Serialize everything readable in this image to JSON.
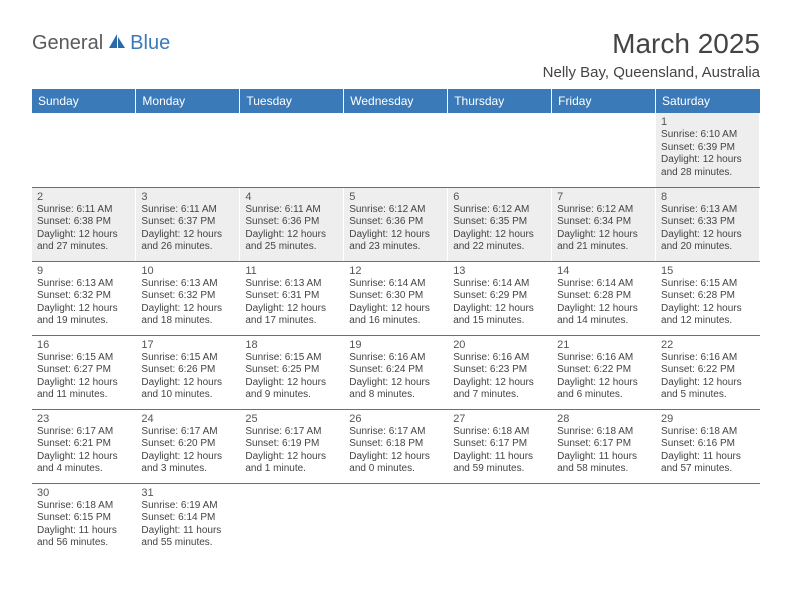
{
  "logo": {
    "text_dark": "General",
    "text_blue": "Blue",
    "icon_color": "#2b6aa8"
  },
  "title": "March 2025",
  "location": "Nelly Bay, Queensland, Australia",
  "colors": {
    "header_bg": "#3a7ab8",
    "header_text": "#ffffff",
    "shaded_bg": "#eeeeee",
    "border": "#3a7ab8"
  },
  "day_headers": [
    "Sunday",
    "Monday",
    "Tuesday",
    "Wednesday",
    "Thursday",
    "Friday",
    "Saturday"
  ],
  "weeks": [
    [
      {
        "blank": true
      },
      {
        "blank": true
      },
      {
        "blank": true
      },
      {
        "blank": true
      },
      {
        "blank": true
      },
      {
        "blank": true
      },
      {
        "day": "1",
        "shaded": true,
        "sunrise": "Sunrise: 6:10 AM",
        "sunset": "Sunset: 6:39 PM",
        "daylight": "Daylight: 12 hours and 28 minutes."
      }
    ],
    [
      {
        "day": "2",
        "shaded": true,
        "sunrise": "Sunrise: 6:11 AM",
        "sunset": "Sunset: 6:38 PM",
        "daylight": "Daylight: 12 hours and 27 minutes."
      },
      {
        "day": "3",
        "shaded": true,
        "sunrise": "Sunrise: 6:11 AM",
        "sunset": "Sunset: 6:37 PM",
        "daylight": "Daylight: 12 hours and 26 minutes."
      },
      {
        "day": "4",
        "shaded": true,
        "sunrise": "Sunrise: 6:11 AM",
        "sunset": "Sunset: 6:36 PM",
        "daylight": "Daylight: 12 hours and 25 minutes."
      },
      {
        "day": "5",
        "shaded": true,
        "sunrise": "Sunrise: 6:12 AM",
        "sunset": "Sunset: 6:36 PM",
        "daylight": "Daylight: 12 hours and 23 minutes."
      },
      {
        "day": "6",
        "shaded": true,
        "sunrise": "Sunrise: 6:12 AM",
        "sunset": "Sunset: 6:35 PM",
        "daylight": "Daylight: 12 hours and 22 minutes."
      },
      {
        "day": "7",
        "shaded": true,
        "sunrise": "Sunrise: 6:12 AM",
        "sunset": "Sunset: 6:34 PM",
        "daylight": "Daylight: 12 hours and 21 minutes."
      },
      {
        "day": "8",
        "shaded": true,
        "sunrise": "Sunrise: 6:13 AM",
        "sunset": "Sunset: 6:33 PM",
        "daylight": "Daylight: 12 hours and 20 minutes."
      }
    ],
    [
      {
        "day": "9",
        "sunrise": "Sunrise: 6:13 AM",
        "sunset": "Sunset: 6:32 PM",
        "daylight": "Daylight: 12 hours and 19 minutes."
      },
      {
        "day": "10",
        "sunrise": "Sunrise: 6:13 AM",
        "sunset": "Sunset: 6:32 PM",
        "daylight": "Daylight: 12 hours and 18 minutes."
      },
      {
        "day": "11",
        "sunrise": "Sunrise: 6:13 AM",
        "sunset": "Sunset: 6:31 PM",
        "daylight": "Daylight: 12 hours and 17 minutes."
      },
      {
        "day": "12",
        "sunrise": "Sunrise: 6:14 AM",
        "sunset": "Sunset: 6:30 PM",
        "daylight": "Daylight: 12 hours and 16 minutes."
      },
      {
        "day": "13",
        "sunrise": "Sunrise: 6:14 AM",
        "sunset": "Sunset: 6:29 PM",
        "daylight": "Daylight: 12 hours and 15 minutes."
      },
      {
        "day": "14",
        "sunrise": "Sunrise: 6:14 AM",
        "sunset": "Sunset: 6:28 PM",
        "daylight": "Daylight: 12 hours and 14 minutes."
      },
      {
        "day": "15",
        "sunrise": "Sunrise: 6:15 AM",
        "sunset": "Sunset: 6:28 PM",
        "daylight": "Daylight: 12 hours and 12 minutes."
      }
    ],
    [
      {
        "day": "16",
        "sunrise": "Sunrise: 6:15 AM",
        "sunset": "Sunset: 6:27 PM",
        "daylight": "Daylight: 12 hours and 11 minutes."
      },
      {
        "day": "17",
        "sunrise": "Sunrise: 6:15 AM",
        "sunset": "Sunset: 6:26 PM",
        "daylight": "Daylight: 12 hours and 10 minutes."
      },
      {
        "day": "18",
        "sunrise": "Sunrise: 6:15 AM",
        "sunset": "Sunset: 6:25 PM",
        "daylight": "Daylight: 12 hours and 9 minutes."
      },
      {
        "day": "19",
        "sunrise": "Sunrise: 6:16 AM",
        "sunset": "Sunset: 6:24 PM",
        "daylight": "Daylight: 12 hours and 8 minutes."
      },
      {
        "day": "20",
        "sunrise": "Sunrise: 6:16 AM",
        "sunset": "Sunset: 6:23 PM",
        "daylight": "Daylight: 12 hours and 7 minutes."
      },
      {
        "day": "21",
        "sunrise": "Sunrise: 6:16 AM",
        "sunset": "Sunset: 6:22 PM",
        "daylight": "Daylight: 12 hours and 6 minutes."
      },
      {
        "day": "22",
        "sunrise": "Sunrise: 6:16 AM",
        "sunset": "Sunset: 6:22 PM",
        "daylight": "Daylight: 12 hours and 5 minutes."
      }
    ],
    [
      {
        "day": "23",
        "sunrise": "Sunrise: 6:17 AM",
        "sunset": "Sunset: 6:21 PM",
        "daylight": "Daylight: 12 hours and 4 minutes."
      },
      {
        "day": "24",
        "sunrise": "Sunrise: 6:17 AM",
        "sunset": "Sunset: 6:20 PM",
        "daylight": "Daylight: 12 hours and 3 minutes."
      },
      {
        "day": "25",
        "sunrise": "Sunrise: 6:17 AM",
        "sunset": "Sunset: 6:19 PM",
        "daylight": "Daylight: 12 hours and 1 minute."
      },
      {
        "day": "26",
        "sunrise": "Sunrise: 6:17 AM",
        "sunset": "Sunset: 6:18 PM",
        "daylight": "Daylight: 12 hours and 0 minutes."
      },
      {
        "day": "27",
        "sunrise": "Sunrise: 6:18 AM",
        "sunset": "Sunset: 6:17 PM",
        "daylight": "Daylight: 11 hours and 59 minutes."
      },
      {
        "day": "28",
        "sunrise": "Sunrise: 6:18 AM",
        "sunset": "Sunset: 6:17 PM",
        "daylight": "Daylight: 11 hours and 58 minutes."
      },
      {
        "day": "29",
        "sunrise": "Sunrise: 6:18 AM",
        "sunset": "Sunset: 6:16 PM",
        "daylight": "Daylight: 11 hours and 57 minutes."
      }
    ],
    [
      {
        "day": "30",
        "sunrise": "Sunrise: 6:18 AM",
        "sunset": "Sunset: 6:15 PM",
        "daylight": "Daylight: 11 hours and 56 minutes."
      },
      {
        "day": "31",
        "sunrise": "Sunrise: 6:19 AM",
        "sunset": "Sunset: 6:14 PM",
        "daylight": "Daylight: 11 hours and 55 minutes."
      },
      {
        "blank": true,
        "noborder": true
      },
      {
        "blank": true,
        "noborder": true
      },
      {
        "blank": true,
        "noborder": true
      },
      {
        "blank": true,
        "noborder": true
      },
      {
        "blank": true,
        "noborder": true
      }
    ]
  ]
}
